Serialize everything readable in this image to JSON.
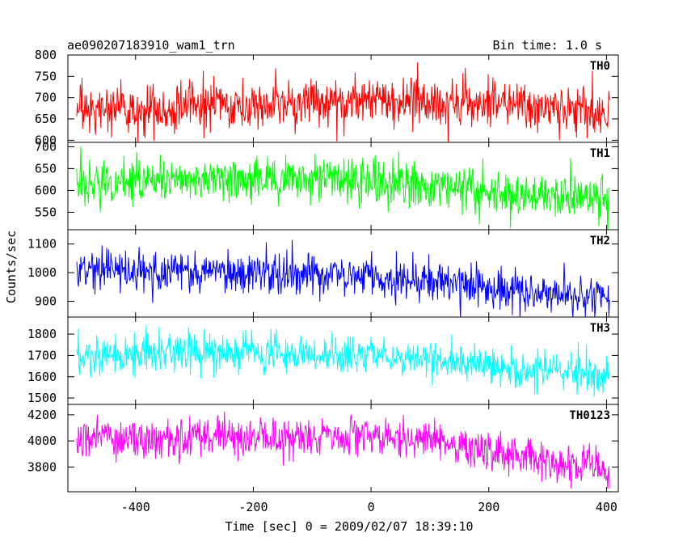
{
  "header": {
    "title": "ae090207183910_wam1_trn",
    "bin_time": "Bin time: 1.0 s"
  },
  "chart_data": {
    "type": "line",
    "xlabel": "Time [sec] 0 = 2009/02/07 18:39:10",
    "ylabel": "Counts/sec",
    "xlim": [
      -515,
      420
    ],
    "xticks": [
      -400,
      -200,
      0,
      200,
      400
    ],
    "x_start": -500,
    "x_end": 405,
    "bin": 1.0,
    "panels": [
      {
        "name": "TH0",
        "color": "#ff0000",
        "ylim": [
          595,
          800
        ],
        "yticks": [
          600,
          650,
          700,
          750,
          800
        ],
        "trend": [
          [
            -500,
            672
          ],
          [
            -300,
            680
          ],
          [
            -100,
            688
          ],
          [
            0,
            692
          ],
          [
            100,
            690
          ],
          [
            200,
            684
          ],
          [
            300,
            674
          ],
          [
            405,
            666
          ]
        ],
        "noise": 28
      },
      {
        "name": "TH1",
        "color": "#00ff00",
        "ylim": [
          510,
          710
        ],
        "yticks": [
          550,
          600,
          650,
          700
        ],
        "trend": [
          [
            -500,
            622
          ],
          [
            -300,
            626
          ],
          [
            -100,
            622
          ],
          [
            0,
            618
          ],
          [
            100,
            612
          ],
          [
            200,
            602
          ],
          [
            300,
            588
          ],
          [
            405,
            580
          ]
        ],
        "noise": 27
      },
      {
        "name": "TH2",
        "color": "#0000ff",
        "ylim": [
          845,
          1150
        ],
        "yticks": [
          900,
          1000,
          1100
        ],
        "trend": [
          [
            -500,
            1008
          ],
          [
            -300,
            1004
          ],
          [
            -100,
            995
          ],
          [
            0,
            985
          ],
          [
            100,
            968
          ],
          [
            200,
            950
          ],
          [
            300,
            928
          ],
          [
            405,
            912
          ]
        ],
        "noise": 36
      },
      {
        "name": "TH3",
        "color": "#00ffff",
        "ylim": [
          1470,
          1880
        ],
        "yticks": [
          1500,
          1600,
          1700,
          1800
        ],
        "trend": [
          [
            -500,
            1706
          ],
          [
            -300,
            1712
          ],
          [
            -100,
            1706
          ],
          [
            0,
            1695
          ],
          [
            100,
            1680
          ],
          [
            200,
            1660
          ],
          [
            300,
            1630
          ],
          [
            405,
            1612
          ]
        ],
        "noise": 45
      },
      {
        "name": "TH0123",
        "color": "#ff00ff",
        "ylim": [
          3610,
          4280
        ],
        "yticks": [
          3800,
          4000,
          4200
        ],
        "trend": [
          [
            -500,
            4005
          ],
          [
            -300,
            4030
          ],
          [
            -100,
            4040
          ],
          [
            0,
            4025
          ],
          [
            100,
            3990
          ],
          [
            200,
            3930
          ],
          [
            300,
            3840
          ],
          [
            405,
            3770
          ]
        ],
        "noise": 75
      }
    ]
  }
}
